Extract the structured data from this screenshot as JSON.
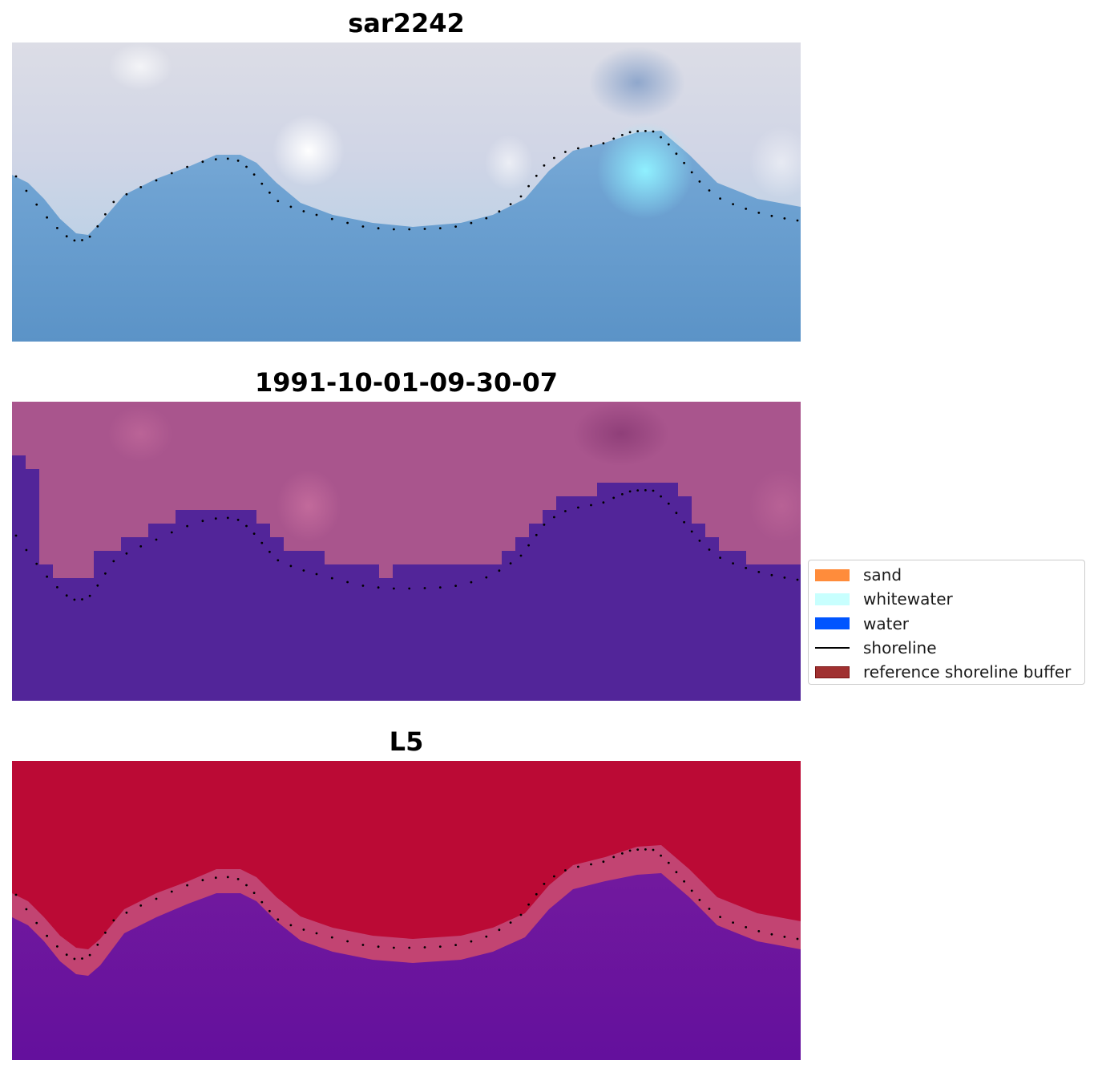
{
  "panels": [
    {
      "title": "sar2242",
      "kind": "rgb"
    },
    {
      "title": "1991-10-01-09-30-07",
      "kind": "classified"
    },
    {
      "title": "L5",
      "kind": "index"
    }
  ],
  "legend": {
    "items": [
      {
        "label": "sand",
        "type": "patch",
        "color": "#ff8c3b",
        "edge": "#ff8c3b"
      },
      {
        "label": "whitewater",
        "type": "patch",
        "color": "#c8fffe",
        "edge": "#c8fffe"
      },
      {
        "label": "water",
        "type": "patch",
        "color": "#0055ff",
        "edge": "#0055ff"
      },
      {
        "label": "shoreline",
        "type": "line",
        "color": "#000000"
      },
      {
        "label": "reference shoreline buffer",
        "type": "patch",
        "color": "#a03030",
        "edge": "#7a1414"
      }
    ]
  },
  "colors": {
    "rgb_land": "#d7d7e7",
    "rgb_water": "#5b93c7",
    "rgb_whitewater_patch": "#8ee9fb",
    "classified_land": "#a9558d",
    "classified_water": "#522599",
    "index_land": "#bb0a35",
    "index_water": "#66119e",
    "shoreline_dots": "#000000"
  }
}
